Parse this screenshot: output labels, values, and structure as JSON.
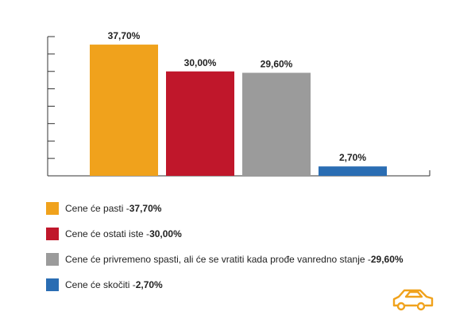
{
  "chart_data": {
    "type": "bar",
    "categories": [
      "Cene će pasti",
      "Cene će ostati iste",
      "Cene će privremeno spasti, ali će se vratiti kada prođe vanredno stanje",
      "Cene će skočiti"
    ],
    "values": [
      37.7,
      30.0,
      29.6,
      2.7
    ],
    "data_labels": [
      "37,70%",
      "30,00%",
      "29,60%",
      "2,70%"
    ],
    "colors": [
      "#F0A21C",
      "#C0172B",
      "#9B9B9B",
      "#2A6DB3"
    ],
    "ylim": [
      0,
      40
    ],
    "grid": false,
    "legend_position": "bottom-left"
  },
  "legend": [
    {
      "label": "Cene će pasti - ",
      "value": "37,70%",
      "color": "#F0A21C"
    },
    {
      "label": "Cene će ostati iste  - ",
      "value": "30,00%",
      "color": "#C0172B"
    },
    {
      "label": "Cene će privremeno spasti, ali će se vratiti kada prođe vanredno stanje - ",
      "value": "29,60%",
      "color": "#9B9B9B"
    },
    {
      "label": "Cene će skočiti  - ",
      "value": "2,70%",
      "color": "#2A6DB3"
    }
  ],
  "logo": {
    "icon": "car-outline-icon",
    "color": "#F0A21C"
  }
}
